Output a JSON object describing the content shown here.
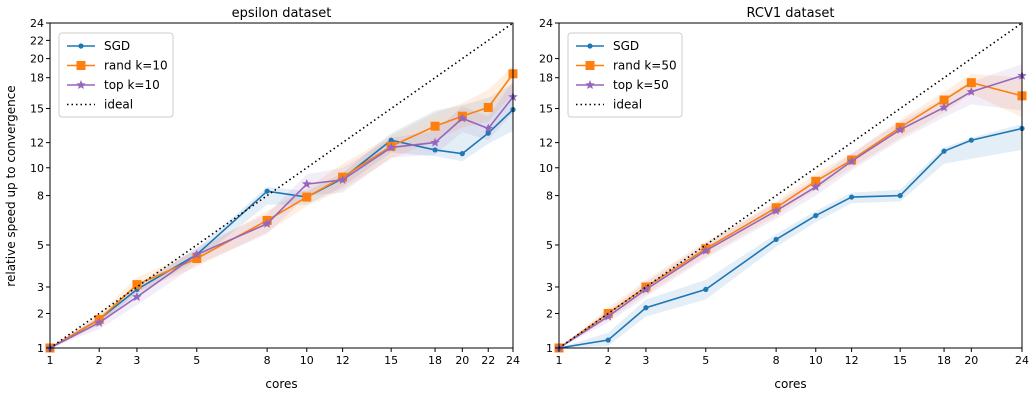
{
  "figure": {
    "ylabel": "relative speed up to convergence"
  },
  "chart_data": [
    {
      "type": "line",
      "title": "epsilon dataset",
      "xlabel": "cores",
      "ylabel": "relative speed up to convergence",
      "x": [
        1,
        2,
        3,
        5,
        8,
        10,
        12,
        15,
        18,
        20,
        22,
        24
      ],
      "xticks": [
        1,
        2,
        3,
        5,
        8,
        10,
        12,
        15,
        18,
        20,
        22,
        24
      ],
      "yticks": [
        1,
        2,
        3,
        5,
        8,
        10,
        12,
        15,
        18,
        20,
        22,
        24
      ],
      "xlim": [
        1,
        24
      ],
      "ylim": [
        1,
        24
      ],
      "scale": "sqrt",
      "grid": false,
      "legend_position": "top-left",
      "series": [
        {
          "name": "SGD",
          "color": "#1f77b4",
          "marker": "circle",
          "values": [
            1,
            1.8,
            2.9,
            4.5,
            8.3,
            7.9,
            9.2,
            12.2,
            11.4,
            11.1,
            12.8,
            14.9
          ],
          "band_low": [
            1,
            1.7,
            2.7,
            4.2,
            7.4,
            7.4,
            8.6,
            11.2,
            10.9,
            10.5,
            11.9,
            13.0
          ],
          "band_high": [
            1,
            1.9,
            3.1,
            4.8,
            8.6,
            8.3,
            9.6,
            12.8,
            14.8,
            15.3,
            16.0,
            17.4
          ]
        },
        {
          "name": "rand k=10",
          "color": "#ff7f0e",
          "marker": "square",
          "values": [
            1,
            1.8,
            3.1,
            4.3,
            6.4,
            7.9,
            9.3,
            11.7,
            13.4,
            14.3,
            15.1,
            18.4
          ],
          "band_low": [
            1,
            1.6,
            2.8,
            3.9,
            5.7,
            7.3,
            8.4,
            10.7,
            12.2,
            13.3,
            13.8,
            16.4
          ],
          "band_high": [
            1,
            2.0,
            3.4,
            4.7,
            7.0,
            8.5,
            10.3,
            12.6,
            14.6,
            15.5,
            16.8,
            19.2
          ]
        },
        {
          "name": "top k=10",
          "color": "#9467bd",
          "marker": "star",
          "values": [
            1,
            1.7,
            2.6,
            4.5,
            6.2,
            8.8,
            9.1,
            11.6,
            12.0,
            14.1,
            13.2,
            16.1
          ],
          "band_low": [
            1,
            1.5,
            2.3,
            4.0,
            5.6,
            8.0,
            8.2,
            10.8,
            11.0,
            12.9,
            12.2,
            14.6
          ],
          "band_high": [
            1,
            1.9,
            2.9,
            4.9,
            6.8,
            9.5,
            10.0,
            12.4,
            13.0,
            15.2,
            14.3,
            17.6
          ]
        },
        {
          "name": "ideal",
          "color": "#000000",
          "marker": "none",
          "dotted": true,
          "values": [
            1,
            2,
            3,
            5,
            8,
            10,
            12,
            15,
            18,
            20,
            22,
            24
          ]
        }
      ]
    },
    {
      "type": "line",
      "title": "RCV1 dataset",
      "xlabel": "cores",
      "ylabel": "",
      "x": [
        1,
        2,
        3,
        5,
        8,
        10,
        12,
        15,
        18,
        20,
        24
      ],
      "xticks": [
        1,
        2,
        3,
        5,
        8,
        10,
        12,
        15,
        18,
        20,
        24
      ],
      "yticks": [
        1,
        2,
        3,
        5,
        8,
        10,
        12,
        15,
        18,
        20,
        24
      ],
      "xlim": [
        1,
        24
      ],
      "ylim": [
        1,
        24
      ],
      "scale": "sqrt",
      "grid": false,
      "legend_position": "top-left",
      "series": [
        {
          "name": "SGD",
          "color": "#1f77b4",
          "marker": "circle",
          "values": [
            1,
            1.2,
            2.2,
            2.9,
            5.3,
            6.7,
            7.9,
            8.0,
            11.3,
            12.2,
            13.2
          ],
          "band_low": [
            1,
            1.05,
            1.9,
            2.5,
            4.9,
            6.3,
            7.5,
            7.6,
            10.3,
            10.7,
            11.4
          ],
          "band_high": [
            1,
            1.4,
            2.5,
            3.3,
            5.6,
            7.0,
            8.2,
            8.4,
            11.6,
            12.4,
            13.6
          ]
        },
        {
          "name": "rand k=50",
          "color": "#ff7f0e",
          "marker": "square",
          "values": [
            1,
            2.0,
            3.0,
            4.8,
            7.2,
            9.0,
            10.6,
            13.3,
            15.8,
            17.5,
            16.2
          ],
          "band_low": [
            1,
            1.8,
            2.7,
            4.4,
            6.7,
            8.4,
            10.0,
            12.4,
            14.6,
            16.4,
            14.2
          ],
          "band_high": [
            1,
            2.2,
            3.3,
            5.2,
            7.6,
            9.6,
            11.1,
            14.0,
            16.6,
            18.4,
            18.0
          ]
        },
        {
          "name": "top k=50",
          "color": "#9467bd",
          "marker": "star",
          "values": [
            1,
            1.9,
            2.9,
            4.7,
            7.0,
            8.6,
            10.5,
            13.1,
            15.1,
            16.6,
            18.2
          ],
          "band_low": [
            1,
            1.7,
            2.6,
            4.3,
            6.5,
            8.0,
            9.8,
            12.2,
            14.2,
            15.4,
            14.8
          ],
          "band_high": [
            1,
            2.1,
            3.2,
            5.1,
            7.5,
            9.2,
            11.1,
            13.8,
            16.0,
            17.6,
            19.4
          ]
        },
        {
          "name": "ideal",
          "color": "#000000",
          "marker": "none",
          "dotted": true,
          "values": [
            1,
            2,
            3,
            5,
            8,
            10,
            12,
            15,
            18,
            20,
            24
          ]
        }
      ]
    }
  ]
}
